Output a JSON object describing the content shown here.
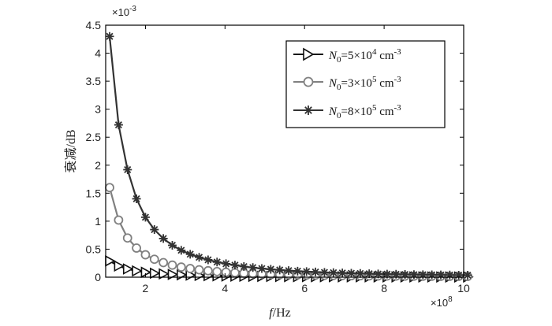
{
  "chart_data": {
    "type": "line",
    "xlabel_italic": "f",
    "xlabel_rest": "/Hz",
    "ylabel": "衰减/dB",
    "x_multiplier_label": "×10",
    "x_multiplier_exp": "8",
    "y_multiplier_label": "×10",
    "y_multiplier_exp": "-3",
    "xlim": [
      1,
      10
    ],
    "ylim": [
      0,
      4.5
    ],
    "x_ticks": [
      2,
      4,
      6,
      8,
      10
    ],
    "y_ticks": [
      0,
      0.5,
      1,
      1.5,
      2,
      2.5,
      3,
      3.5,
      4,
      4.5
    ],
    "legend_position": "top-right",
    "x": [
      1.1,
      1.325,
      1.55,
      1.775,
      2.0,
      2.225,
      2.45,
      2.675,
      2.9,
      3.125,
      3.35,
      3.575,
      3.8,
      4.025,
      4.25,
      4.475,
      4.7,
      4.925,
      5.15,
      5.375,
      5.6,
      5.825,
      6.05,
      6.275,
      6.5,
      6.725,
      6.95,
      7.175,
      7.4,
      7.625,
      7.85,
      8.075,
      8.3,
      8.525,
      8.75,
      8.975,
      9.2,
      9.425,
      9.65,
      9.875,
      10.1
    ],
    "series": [
      {
        "legend_base": "N",
        "legend_sub": "0",
        "legend_mid": "=5×10",
        "legend_sup": "4",
        "legend_unit": " cm",
        "legend_unit_sup": "-3",
        "marker": "triangle-right",
        "color": "#111111",
        "values": [
          0.29,
          0.2,
          0.147,
          0.112,
          0.088,
          0.071,
          0.059,
          0.049,
          0.042,
          0.036,
          0.031,
          0.027,
          0.024,
          0.021,
          0.019,
          0.017,
          0.016,
          0.014,
          0.013,
          0.012,
          0.011,
          0.01,
          0.0095,
          0.0088,
          0.0082,
          0.0077,
          0.0072,
          0.0067,
          0.0063,
          0.006,
          0.0056,
          0.0053,
          0.005,
          0.0048,
          0.0046,
          0.0044,
          0.0042,
          0.004,
          0.0038,
          0.0036,
          0.0035
        ]
      },
      {
        "legend_base": "N",
        "legend_sub": "0",
        "legend_mid": "=3×10",
        "legend_sup": "5",
        "legend_unit": " cm",
        "legend_unit_sup": "-3",
        "marker": "circle",
        "color": "#808080",
        "values": [
          1.6,
          1.02,
          0.7,
          0.52,
          0.4,
          0.32,
          0.26,
          0.215,
          0.18,
          0.154,
          0.132,
          0.115,
          0.1,
          0.089,
          0.079,
          0.071,
          0.064,
          0.058,
          0.053,
          0.048,
          0.044,
          0.041,
          0.038,
          0.035,
          0.032,
          0.03,
          0.028,
          0.026,
          0.025,
          0.023,
          0.022,
          0.021,
          0.02,
          0.019,
          0.018,
          0.017,
          0.016,
          0.015,
          0.0145,
          0.014,
          0.0135
        ]
      },
      {
        "legend_base": "N",
        "legend_sub": "0",
        "legend_mid": "=8×10",
        "legend_sup": "5",
        "legend_unit": " cm",
        "legend_unit_sup": "-3",
        "marker": "asterisk",
        "color": "#333333",
        "values": [
          4.3,
          2.72,
          1.92,
          1.4,
          1.07,
          0.85,
          0.69,
          0.57,
          0.48,
          0.41,
          0.355,
          0.31,
          0.27,
          0.24,
          0.215,
          0.19,
          0.172,
          0.155,
          0.141,
          0.129,
          0.118,
          0.108,
          0.1,
          0.093,
          0.086,
          0.08,
          0.075,
          0.07,
          0.066,
          0.062,
          0.058,
          0.055,
          0.052,
          0.049,
          0.046,
          0.044,
          0.042,
          0.04,
          0.038,
          0.036,
          0.035
        ]
      }
    ]
  }
}
